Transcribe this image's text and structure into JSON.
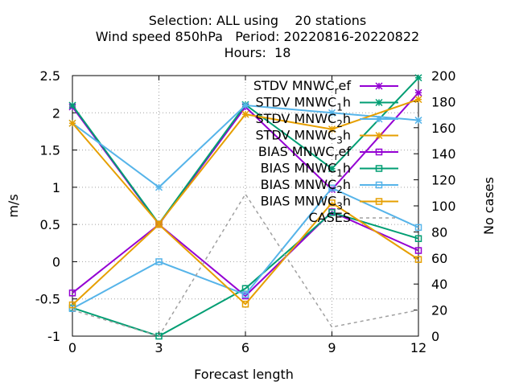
{
  "chart_data": {
    "type": "line",
    "title_lines": [
      "Selection: ALL using    20 stations",
      "Wind speed 850hPa   Period: 20220816-20220822",
      "Hours:  18"
    ],
    "xlabel": "Forecast length",
    "ylabel": "m/s",
    "y2label": "No cases",
    "x": [
      0,
      3,
      6,
      9,
      12
    ],
    "xlim": [
      0,
      12
    ],
    "ylim": [
      -1,
      2.5
    ],
    "y2lim": [
      0,
      200
    ],
    "x_ticks": [
      "0",
      "3",
      "6",
      "9",
      "12"
    ],
    "y_ticks": [
      "-1",
      "-0.5",
      "0",
      "0.5",
      "1",
      "1.5",
      "2",
      "2.5"
    ],
    "y2_ticks": [
      "0",
      "20",
      "40",
      "60",
      "80",
      "100",
      "120",
      "140",
      "160",
      "180",
      "200"
    ],
    "grid": true,
    "legend_position": "top-right",
    "series": [
      {
        "name": "STDV MNWC_ref",
        "label_main": "STDV MNWC",
        "label_sub": "r",
        "label_tail": "ef",
        "color": "#9400d3",
        "marker": "star",
        "axis": "y",
        "values": [
          2.08,
          0.5,
          2.08,
          0.97,
          2.27
        ]
      },
      {
        "name": "STDV MNWC_1h",
        "label_main": "STDV MNWC",
        "label_sub": "1",
        "label_tail": "h",
        "color": "#009e73",
        "marker": "star",
        "axis": "y",
        "values": [
          2.1,
          0.51,
          2.11,
          1.25,
          2.47
        ]
      },
      {
        "name": "STDV MNWC_2h",
        "label_main": "STDV MNWC",
        "label_sub": "2",
        "label_tail": "h",
        "color": "#56b4e9",
        "marker": "star",
        "axis": "y",
        "values": [
          1.86,
          1.0,
          2.1,
          2.0,
          1.9
        ]
      },
      {
        "name": "STDV MNWC_3h",
        "label_main": "STDV MNWC",
        "label_sub": "3",
        "label_tail": "h",
        "color": "#e69f00",
        "marker": "star",
        "axis": "y",
        "values": [
          1.86,
          0.51,
          1.98,
          1.78,
          2.18
        ]
      },
      {
        "name": "BIAS MNWC_ref",
        "label_main": "BIAS MNWC",
        "label_sub": "r",
        "label_tail": "ef",
        "color": "#9400d3",
        "marker": "square",
        "axis": "y",
        "values": [
          -0.42,
          0.5,
          -0.46,
          0.67,
          0.15
        ]
      },
      {
        "name": "BIAS MNWC_1h",
        "label_main": "BIAS MNWC",
        "label_sub": "1",
        "label_tail": "h",
        "color": "#009e73",
        "marker": "square",
        "axis": "y",
        "values": [
          -0.62,
          -1.0,
          -0.36,
          0.66,
          0.31
        ]
      },
      {
        "name": "BIAS MNWC_2h",
        "label_main": "BIAS MNWC",
        "label_sub": "2",
        "label_tail": "h",
        "color": "#56b4e9",
        "marker": "square",
        "axis": "y",
        "values": [
          -0.63,
          0.0,
          -0.44,
          0.99,
          0.46
        ]
      },
      {
        "name": "BIAS MNWC_3h",
        "label_main": "BIAS MNWC",
        "label_sub": "3",
        "label_tail": "h",
        "color": "#e69f00",
        "marker": "square",
        "axis": "y",
        "values": [
          -0.58,
          0.5,
          -0.57,
          0.79,
          0.03
        ]
      },
      {
        "name": "CASES",
        "label_main": "CASES",
        "label_sub": "",
        "label_tail": "",
        "color": "#a0a0a0",
        "marker": "none",
        "dashed": true,
        "axis": "y2",
        "values": [
          20,
          0,
          109,
          7,
          20
        ]
      }
    ]
  }
}
